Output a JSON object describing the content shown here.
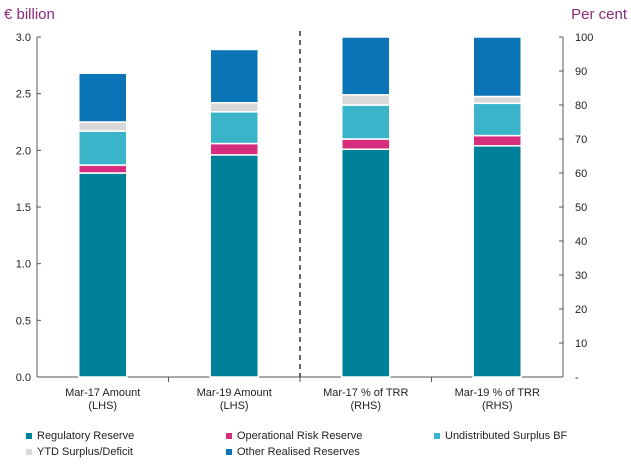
{
  "chart_data": {
    "type": "bar",
    "stacked": true,
    "categories": [
      "Mar-17 Amount\n(LHS)",
      "Mar-19 Amount\n(LHS)",
      "Mar-17 % of TRR\n(RHS)",
      "Mar-19 % of TRR\n(RHS)"
    ],
    "axis_per_category": [
      "left",
      "left",
      "right",
      "right"
    ],
    "series": [
      {
        "name": "Regulatory Reserve",
        "color": "#00819a",
        "values": [
          1.8,
          1.96,
          67.0,
          68.0
        ]
      },
      {
        "name": "Operational Risk Reserve",
        "color": "#d62d7f",
        "values": [
          0.07,
          0.1,
          3.0,
          3.0
        ]
      },
      {
        "name": "Undistributed Surplus BF",
        "color": "#3ab4c8",
        "values": [
          0.3,
          0.28,
          10.0,
          9.5
        ]
      },
      {
        "name": "YTD Surplus/Deficit",
        "color": "#d9d9db",
        "values": [
          0.08,
          0.08,
          3.0,
          2.0
        ]
      },
      {
        "name": "Other Realised Reserves",
        "color": "#0a74b6",
        "values": [
          0.43,
          0.47,
          17.0,
          17.5
        ]
      }
    ],
    "left_axis": {
      "label": "€ billion",
      "ylim": [
        0,
        3.0
      ],
      "ticks": [
        "0.0",
        "0.5",
        "1.0",
        "1.5",
        "2.0",
        "2.5",
        "3.0"
      ]
    },
    "right_axis": {
      "label": "Per cent",
      "ylim": [
        0,
        100
      ],
      "ticks": [
        "-",
        "10",
        "20",
        "30",
        "40",
        "50",
        "60",
        "70",
        "80",
        "90",
        "100"
      ]
    },
    "grid": false,
    "divider_between_categories": [
      1,
      2
    ],
    "legend_position": "bottom"
  }
}
